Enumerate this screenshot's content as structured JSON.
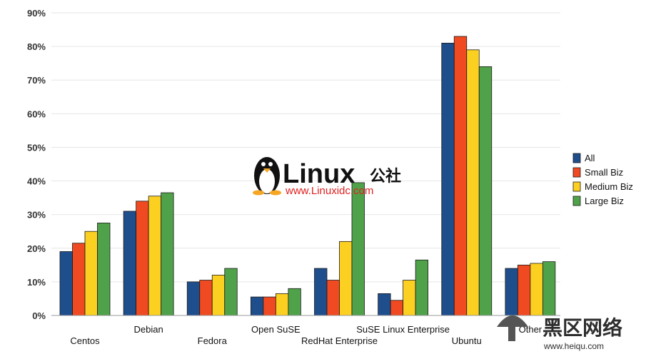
{
  "chart_data": {
    "type": "bar",
    "categories": [
      "Centos",
      "Debian",
      "Fedora",
      "Open SuSE",
      "RedHat Enterprise",
      "SuSE Linux Enterprise",
      "Ubuntu",
      "Other"
    ],
    "series": [
      {
        "name": "All",
        "values": [
          19,
          31,
          10,
          5.5,
          14,
          6.5,
          81,
          14
        ]
      },
      {
        "name": "Small Biz",
        "values": [
          21.5,
          34,
          10.5,
          5.5,
          10.5,
          4.5,
          83,
          15
        ]
      },
      {
        "name": "Medium Biz",
        "values": [
          25,
          35.5,
          12,
          6.5,
          22,
          10.5,
          79,
          15.5
        ]
      },
      {
        "name": "Large Biz",
        "values": [
          27.5,
          36.5,
          14,
          8,
          39.5,
          16.5,
          74,
          16
        ]
      }
    ],
    "ylim": [
      0,
      90
    ],
    "yticks": [
      "0%",
      "10%",
      "20%",
      "30%",
      "40%",
      "50%",
      "60%",
      "70%",
      "80%",
      "90%"
    ],
    "legend_position": "right",
    "colors": {
      "All": "#1f4e8c",
      "Small Biz": "#f04a22",
      "Medium Biz": "#fcd021",
      "Large Biz": "#4fa24a",
      "grid": "#e6e6e6"
    }
  },
  "watermark": {
    "brand": "Linux",
    "brand_cn": "公社",
    "url": "www.Linuxidc.com",
    "site_cn": "黑区网络",
    "site_url": "www.heiqu.com"
  }
}
